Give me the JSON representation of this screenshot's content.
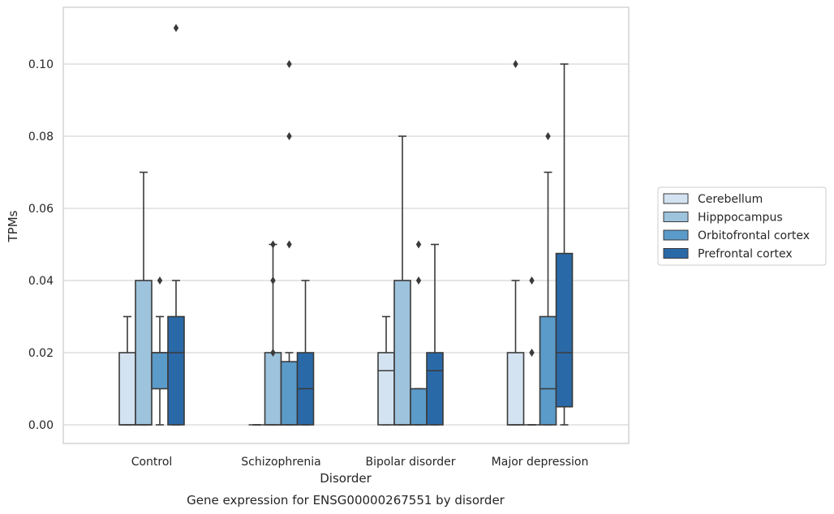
{
  "chart_data": {
    "type": "box",
    "title": "Gene expression for ENSG00000267551 by disorder",
    "xlabel": "Disorder",
    "ylabel": "TPMs",
    "categories": [
      "Control",
      "Schizophrenia",
      "Bipolar disorder",
      "Major depression"
    ],
    "ylim": [
      -0.005,
      0.116
    ],
    "yticks": [
      "0.00",
      "0.02",
      "0.04",
      "0.06",
      "0.08",
      "0.10"
    ],
    "grid": "horizontal",
    "legend_position": "right",
    "series": [
      {
        "name": "Cerebellum",
        "color": "#d4e3f1",
        "boxes": [
          {
            "whislo": 0.0,
            "q1": 0.0,
            "med": 0.0,
            "q3": 0.02,
            "whishi": 0.03,
            "fliers": []
          },
          {
            "whislo": 0.0,
            "q1": 0.0,
            "med": 0.0,
            "q3": 0.0,
            "whishi": 0.0,
            "fliers": []
          },
          {
            "whislo": 0.0,
            "q1": 0.0,
            "med": 0.015,
            "q3": 0.02,
            "whishi": 0.03,
            "fliers": []
          },
          {
            "whislo": 0.0,
            "q1": 0.0,
            "med": 0.0,
            "q3": 0.02,
            "whishi": 0.04,
            "fliers": [
              0.1
            ]
          }
        ]
      },
      {
        "name": "Hipppocampus",
        "color": "#9dc3dd",
        "boxes": [
          {
            "whislo": 0.0,
            "q1": 0.0,
            "med": 0.0,
            "q3": 0.04,
            "whishi": 0.07,
            "fliers": []
          },
          {
            "whislo": 0.0,
            "q1": 0.0,
            "med": 0.0,
            "q3": 0.02,
            "whishi": 0.05,
            "fliers": [
              0.02,
              0.04,
              0.05
            ]
          },
          {
            "whislo": 0.0,
            "q1": 0.0,
            "med": 0.0,
            "q3": 0.04,
            "whishi": 0.08,
            "fliers": []
          },
          {
            "whislo": 0.0,
            "q1": 0.0,
            "med": 0.0,
            "q3": 0.0,
            "whishi": 0.0,
            "fliers": [
              0.02,
              0.04
            ]
          }
        ]
      },
      {
        "name": "Orbitofrontal cortex",
        "color": "#5b9bc9",
        "boxes": [
          {
            "whislo": 0.0,
            "q1": 0.01,
            "med": 0.02,
            "q3": 0.02,
            "whishi": 0.03,
            "fliers": [
              0.04
            ]
          },
          {
            "whislo": 0.0,
            "q1": 0.0,
            "med": 0.0,
            "q3": 0.0175,
            "whishi": 0.02,
            "fliers": [
              0.05,
              0.08,
              0.1
            ]
          },
          {
            "whislo": 0.0,
            "q1": 0.0,
            "med": 0.0,
            "q3": 0.01,
            "whishi": 0.01,
            "fliers": [
              0.04,
              0.05
            ]
          },
          {
            "whislo": 0.0,
            "q1": 0.0,
            "med": 0.01,
            "q3": 0.03,
            "whishi": 0.07,
            "fliers": [
              0.08
            ]
          }
        ]
      },
      {
        "name": "Prefrontal cortex",
        "color": "#2a69a8",
        "boxes": [
          {
            "whislo": 0.0,
            "q1": 0.0,
            "med": 0.02,
            "q3": 0.03,
            "whishi": 0.04,
            "fliers": [
              0.11
            ]
          },
          {
            "whislo": 0.0,
            "q1": 0.0,
            "med": 0.01,
            "q3": 0.02,
            "whishi": 0.04,
            "fliers": []
          },
          {
            "whislo": 0.0,
            "q1": 0.0,
            "med": 0.015,
            "q3": 0.02,
            "whishi": 0.05,
            "fliers": []
          },
          {
            "whislo": 0.0,
            "q1": 0.005,
            "med": 0.02,
            "q3": 0.0475,
            "whishi": 0.1,
            "fliers": []
          }
        ]
      }
    ]
  }
}
